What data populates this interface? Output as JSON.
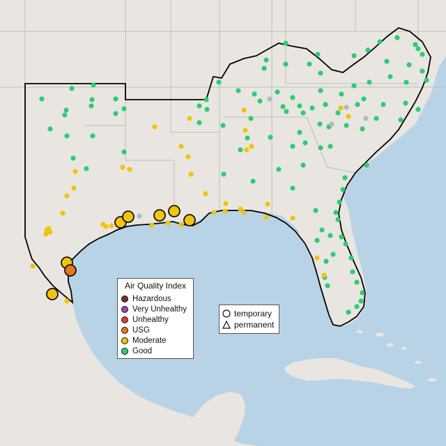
{
  "map": {
    "title": "",
    "basemap": "gray-canvas",
    "colors": {
      "land": "#e9e6e1",
      "water": "#b9d3e6",
      "region_outline": "#000000",
      "state_lines": "#bdbdbd"
    }
  },
  "legend": {
    "title": "Air Quality Index",
    "categories": [
      {
        "label": "Hazardous",
        "color": "#7e2a22"
      },
      {
        "label": "Very Unhealthy",
        "color": "#8f4fb4"
      },
      {
        "label": "Unhealthy",
        "color": "#e2402f"
      },
      {
        "label": "USG",
        "color": "#e5771f"
      },
      {
        "label": "Moderate",
        "color": "#f2c30f"
      },
      {
        "label": "Good",
        "color": "#2ecc71"
      }
    ],
    "no_data_color": "#b8b8b8"
  },
  "shape_legend": {
    "items": [
      {
        "label": "temporary",
        "icon": "circle-icon"
      },
      {
        "label": "permanent",
        "icon": "triangle-icon"
      }
    ]
  },
  "monitor_summary": {
    "large_markers": [
      {
        "category": "Moderate"
      },
      {
        "category": "Moderate"
      },
      {
        "category": "Moderate"
      },
      {
        "category": "Moderate"
      },
      {
        "category": "Moderate"
      },
      {
        "category": "Moderate"
      },
      {
        "category": "Moderate"
      },
      {
        "category": "USG"
      }
    ]
  }
}
